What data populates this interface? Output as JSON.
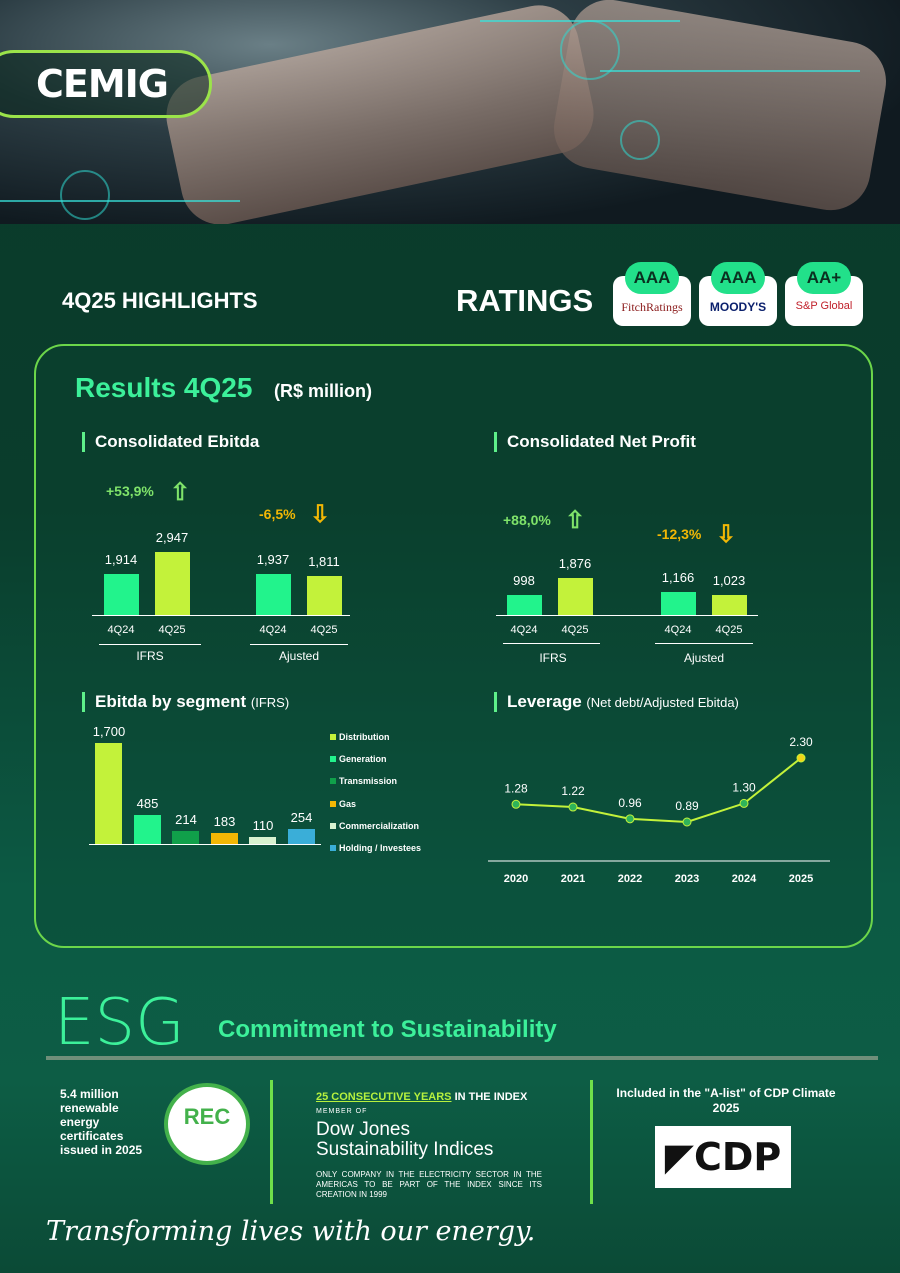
{
  "brand": {
    "logo": "CEMIG",
    "accent": "#3cf09a",
    "lime": "#c3f23a",
    "green": "#22f38c"
  },
  "header": {
    "highlights": "4Q25 HIGHLIGHTS",
    "ratings_title": "RATINGS"
  },
  "ratings": [
    {
      "grade": "AAA",
      "agency": "FitchRatings"
    },
    {
      "grade": "AAA",
      "agency": "MOODY'S"
    },
    {
      "grade": "AA+",
      "agency": "S&P Global"
    }
  ],
  "results": {
    "title": "Results 4Q25",
    "unit": "(R$ million)"
  },
  "ebitda": {
    "title": "Consolidated Ebitda",
    "ifrs_change": "+53,9%",
    "adj_change": "-6,5%",
    "group1": "IFRS",
    "group2": "Ajusted"
  },
  "net_profit": {
    "title": "Consolidated Net Profit",
    "ifrs_change": "+88,0%",
    "adj_change": "-12,3%",
    "group1": "IFRS",
    "group2": "Ajusted"
  },
  "segment": {
    "title": "Ebitda by segment",
    "sub": "(IFRS)"
  },
  "leverage": {
    "title": "Leverage",
    "sub": "(Net debt/Adjusted Ebitda)"
  },
  "chart_data": [
    {
      "type": "bar",
      "title": "Consolidated Ebitda",
      "categories": [
        "4Q24",
        "4Q25",
        "4Q24",
        "4Q25"
      ],
      "groups": [
        "IFRS",
        "IFRS",
        "Ajusted",
        "Ajusted"
      ],
      "values": [
        1914,
        2947,
        1937,
        1811
      ],
      "labels": [
        "1,914",
        "2,947",
        "1,937",
        "1,811"
      ]
    },
    {
      "type": "bar",
      "title": "Consolidated Net Profit",
      "categories": [
        "4Q24",
        "4Q25",
        "4Q24",
        "4Q25"
      ],
      "groups": [
        "IFRS",
        "IFRS",
        "Ajusted",
        "Ajusted"
      ],
      "values": [
        998,
        1876,
        1166,
        1023
      ],
      "labels": [
        "998",
        "1,876",
        "1,166",
        "1,023"
      ]
    },
    {
      "type": "bar",
      "title": "Ebitda by segment",
      "categories": [
        "Distribution",
        "Generation",
        "Transmission",
        "Gas",
        "Commercialization",
        "Holding / Investees"
      ],
      "values": [
        1700,
        485,
        214,
        183,
        110,
        254
      ],
      "labels": [
        "1,700",
        "485",
        "214",
        "183",
        "110",
        "254"
      ],
      "colors": [
        "#c3f23a",
        "#22f38c",
        "#10a04a",
        "#f2b705",
        "#d8f2d0",
        "#3aaed8"
      ]
    },
    {
      "type": "line",
      "title": "Leverage",
      "x": [
        "2020",
        "2021",
        "2022",
        "2023",
        "2024",
        "2025"
      ],
      "values": [
        1.28,
        1.22,
        0.96,
        0.89,
        1.3,
        2.3
      ],
      "labels": [
        "1.28",
        "1.22",
        "0.96",
        "0.89",
        "1.30",
        "2.30"
      ]
    }
  ],
  "esg": {
    "title": "ESG",
    "commitment": "Commitment to Sustainability",
    "rec_text": "5.4 million renewable energy certificates issued in 2025",
    "rec_logo": "REC",
    "dj_years": "25 CONSECUTIVE YEARS",
    "dj_in_index": "IN THE INDEX",
    "dj_member": "MEMBER OF",
    "dj_name1": "Dow Jones",
    "dj_name2": "Sustainability Indices",
    "dj_note": "ONLY COMPANY IN THE ELECTRICITY SECTOR IN THE AMERICAS TO BE PART OF THE INDEX SINCE ITS CREATION IN 1999",
    "cdp_text": "Included in the \"A-list\" of CDP Climate 2025",
    "cdp_logo": "CDP"
  },
  "slogan": "Transforming lives with our energy."
}
